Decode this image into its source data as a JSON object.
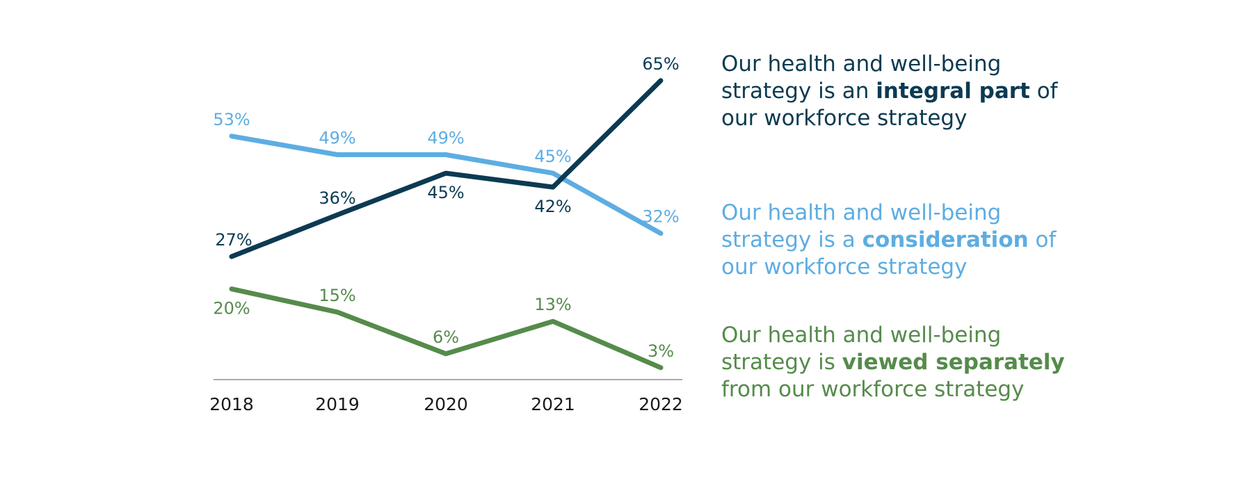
{
  "chart_data": {
    "type": "line",
    "categories": [
      "2018",
      "2019",
      "2020",
      "2021",
      "2022"
    ],
    "ylim": [
      0,
      70
    ],
    "grid": false,
    "legend_position": "right",
    "series": [
      {
        "color": "#0c3a52",
        "values": [
          27,
          36,
          45,
          42,
          65
        ],
        "labels": [
          "27%",
          "36%",
          "45%",
          "42%",
          "65%"
        ],
        "legend": {
          "before": "Our health and well-being strategy is an ",
          "bold": "integral part",
          "after": " of our workforce strategy"
        }
      },
      {
        "color": "#5dade2",
        "values": [
          53,
          49,
          49,
          45,
          32
        ],
        "labels": [
          "53%",
          "49%",
          "49%",
          "45%",
          "32%"
        ],
        "legend": {
          "before": "Our health and well-being strategy is a ",
          "bold": "consideration",
          "after": " of our workforce strategy"
        }
      },
      {
        "color": "#558b4b",
        "values": [
          20,
          15,
          6,
          13,
          3
        ],
        "labels": [
          "20%",
          "15%",
          "6%",
          "13%",
          "3%"
        ],
        "legend": {
          "before": "Our health and well-being strategy is ",
          "bold": "viewed separately",
          "after": " from our workforce strategy"
        }
      }
    ]
  }
}
